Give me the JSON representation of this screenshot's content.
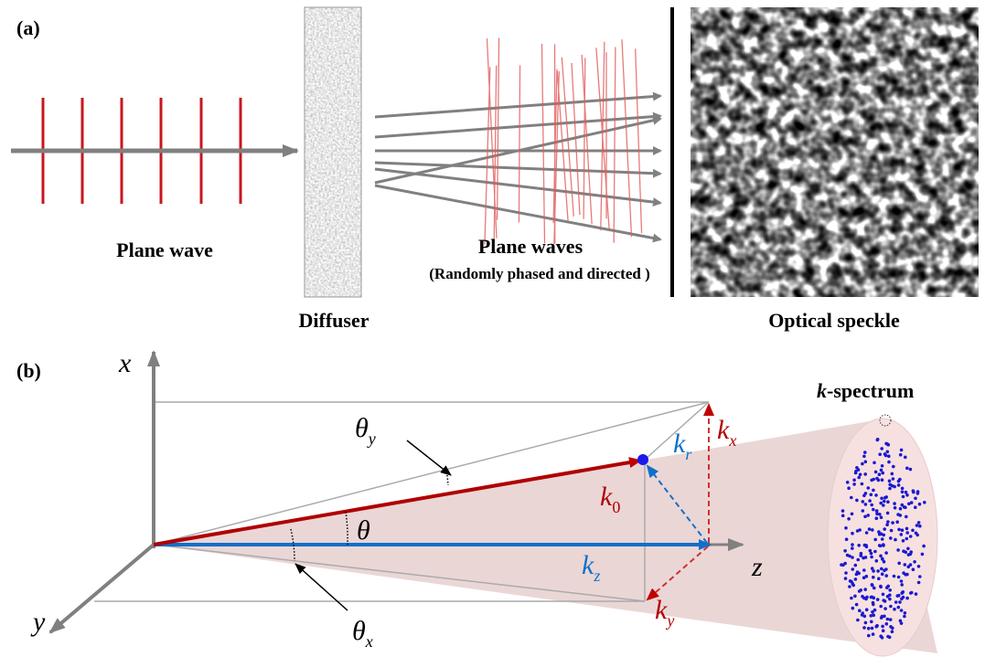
{
  "panel_a": {
    "label": "(a)",
    "plane_wave": "Plane wave",
    "diffuser": "Diffuser",
    "plane_waves": "Plane waves",
    "plane_waves_note": "(Randomly phased and directed )",
    "speckle": "Optical speckle"
  },
  "panel_b": {
    "label": "(b)",
    "axes": {
      "x": "x",
      "y": "y",
      "z": "z"
    },
    "theta": "θ",
    "theta_y": {
      "base": "θ",
      "sub": "y"
    },
    "theta_x": {
      "base": "θ",
      "sub": "x"
    },
    "k0": {
      "base": "k",
      "sub": "0"
    },
    "kr": {
      "base": "k",
      "sub": "r"
    },
    "kx": {
      "base": "k",
      "sub": "x"
    },
    "kz": {
      "base": "k",
      "sub": "z"
    },
    "ky": {
      "base": "k",
      "sub": "y"
    },
    "spectrum": {
      "italic": "k",
      "rest": "-spectrum"
    }
  }
}
